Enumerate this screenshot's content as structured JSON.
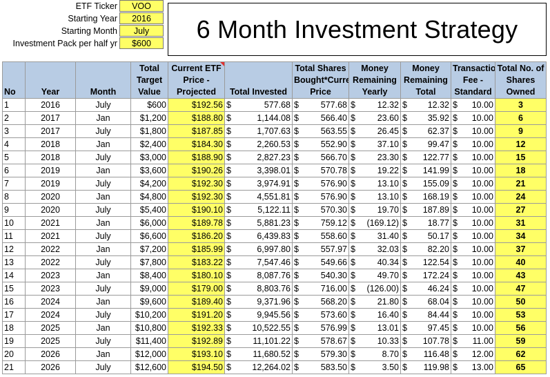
{
  "params": [
    {
      "label": "ETF Ticker",
      "value": "VOO"
    },
    {
      "label": "Starting Year",
      "value": "2016"
    },
    {
      "label": "Starting Month",
      "value": "July"
    },
    {
      "label": "Investment Pack per half yr",
      "value": "$600"
    }
  ],
  "title": "6 Month Investment Strategy",
  "headers": {
    "no": "No",
    "year": "Year",
    "month": "Month",
    "target": "Total Target Value",
    "price": "Current ETF Price - Projected",
    "invested": "Total Invested",
    "bought": "Total Shares Bought*Current Price",
    "rem_yearly": "Money Remaining Yearly",
    "rem_total": "Money Remaining Total",
    "fee": "Transaction Fee - Standard",
    "shares": "Total No. of Shares Owned"
  },
  "currency_symbol": "$",
  "rows": [
    [
      "1",
      "2016",
      "July",
      "$600",
      "$192.56",
      "577.68",
      "577.68",
      "12.32",
      "12.32",
      "10.00",
      "3"
    ],
    [
      "2",
      "2017",
      "Jan",
      "$1,200",
      "$188.80",
      "1,144.08",
      "566.40",
      "23.60",
      "35.92",
      "10.00",
      "6"
    ],
    [
      "3",
      "2017",
      "July",
      "$1,800",
      "$187.85",
      "1,707.63",
      "563.55",
      "26.45",
      "62.37",
      "10.00",
      "9"
    ],
    [
      "4",
      "2018",
      "Jan",
      "$2,400",
      "$184.30",
      "2,260.53",
      "552.90",
      "37.10",
      "99.47",
      "10.00",
      "12"
    ],
    [
      "5",
      "2018",
      "July",
      "$3,000",
      "$188.90",
      "2,827.23",
      "566.70",
      "23.30",
      "122.77",
      "10.00",
      "15"
    ],
    [
      "6",
      "2019",
      "Jan",
      "$3,600",
      "$190.26",
      "3,398.01",
      "570.78",
      "19.22",
      "141.99",
      "10.00",
      "18"
    ],
    [
      "7",
      "2019",
      "July",
      "$4,200",
      "$192.30",
      "3,974.91",
      "576.90",
      "13.10",
      "155.09",
      "10.00",
      "21"
    ],
    [
      "8",
      "2020",
      "Jan",
      "$4,800",
      "$192.30",
      "4,551.81",
      "576.90",
      "13.10",
      "168.19",
      "10.00",
      "24"
    ],
    [
      "9",
      "2020",
      "July",
      "$5,400",
      "$190.10",
      "5,122.11",
      "570.30",
      "19.70",
      "187.89",
      "10.00",
      "27"
    ],
    [
      "10",
      "2021",
      "Jan",
      "$6,000",
      "$189.78",
      "5,881.23",
      "759.12",
      "(169.12)",
      "18.77",
      "10.00",
      "31"
    ],
    [
      "11",
      "2021",
      "July",
      "$6,600",
      "$186.20",
      "6,439.83",
      "558.60",
      "31.40",
      "50.17",
      "10.00",
      "34"
    ],
    [
      "12",
      "2022",
      "Jan",
      "$7,200",
      "$185.99",
      "6,997.80",
      "557.97",
      "32.03",
      "82.20",
      "10.00",
      "37"
    ],
    [
      "13",
      "2022",
      "July",
      "$7,800",
      "$183.22",
      "7,547.46",
      "549.66",
      "40.34",
      "122.54",
      "10.00",
      "40"
    ],
    [
      "14",
      "2023",
      "Jan",
      "$8,400",
      "$180.10",
      "8,087.76",
      "540.30",
      "49.70",
      "172.24",
      "10.00",
      "43"
    ],
    [
      "15",
      "2023",
      "July",
      "$9,000",
      "$179.00",
      "8,803.76",
      "716.00",
      "(126.00)",
      "46.24",
      "10.00",
      "47"
    ],
    [
      "16",
      "2024",
      "Jan",
      "$9,600",
      "$189.40",
      "9,371.96",
      "568.20",
      "21.80",
      "68.04",
      "10.00",
      "50"
    ],
    [
      "17",
      "2024",
      "July",
      "$10,200",
      "$191.20",
      "9,945.56",
      "573.60",
      "16.40",
      "84.44",
      "10.00",
      "53"
    ],
    [
      "18",
      "2025",
      "Jan",
      "$10,800",
      "$192.33",
      "10,522.55",
      "576.99",
      "13.01",
      "97.45",
      "10.00",
      "56"
    ],
    [
      "19",
      "2025",
      "July",
      "$11,400",
      "$192.89",
      "11,101.22",
      "578.67",
      "10.33",
      "107.78",
      "11.00",
      "59"
    ],
    [
      "20",
      "2026",
      "Jan",
      "$12,000",
      "$193.10",
      "11,680.52",
      "579.30",
      "8.70",
      "116.48",
      "12.00",
      "62"
    ],
    [
      "21",
      "2026",
      "July",
      "$12,600",
      "$194.50",
      "12,264.02",
      "583.50",
      "3.50",
      "119.98",
      "13.00",
      "65"
    ]
  ]
}
